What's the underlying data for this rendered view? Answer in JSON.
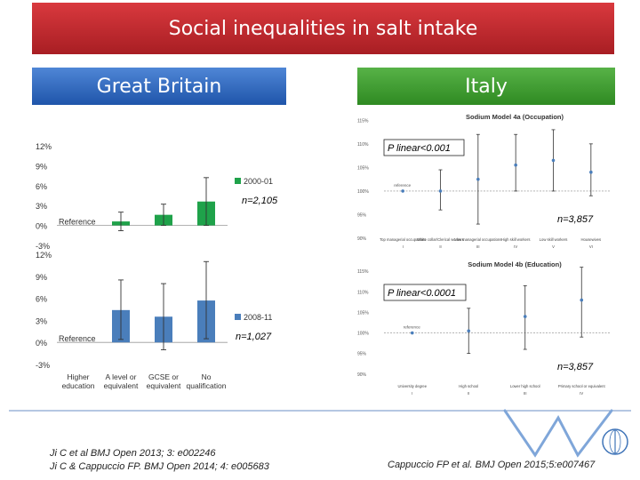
{
  "header": {
    "title": "Social inequalities in salt intake",
    "left_country": "Great Britain",
    "right_country": "Italy"
  },
  "annotations": {
    "gb_top_n": "n=2,105",
    "gb_bottom_n": "n=1,027",
    "it_top_n": "n=3,857",
    "it_bottom_n": "n=3,857",
    "it_top_p": "P linear<0.001",
    "it_bottom_p": "P linear<0.0001"
  },
  "citations": {
    "left_line1": "Ji C et al BMJ Open 2013; 3: e002246",
    "left_line2": "Ji C & Cappuccio FP. BMJ Open 2014; 4: e005683",
    "right": "Cappuccio FP et al. BMJ Open 2015;5:e007467"
  },
  "colors": {
    "title_red": "#c0282d",
    "gb_blue": "#2b63b8",
    "italy_green": "#3a9a2e",
    "bar_green": "#1fa24a",
    "bar_blue": "#4a7ebb",
    "point_blue": "#4a7ebb"
  },
  "chart_data": [
    {
      "type": "bar",
      "panel": "gb-top",
      "categories": [
        "Higher education",
        "A level or equivalent",
        "GCSE or equivalent",
        "No qualification"
      ],
      "series": [
        {
          "name": "2000-01",
          "values": [
            0,
            0.6,
            1.6,
            3.6
          ]
        }
      ],
      "error_low": [
        0,
        -0.8,
        0,
        0
      ],
      "error_high": [
        0,
        2.0,
        3.2,
        7.2
      ],
      "reference_label": "Reference",
      "ylim": [
        -3,
        12
      ],
      "yticks": [
        "12%",
        "9%",
        "6%",
        "3%",
        "0%",
        "-3%"
      ],
      "grid": false,
      "legend": "right"
    },
    {
      "type": "bar",
      "panel": "gb-bottom",
      "categories": [
        "Higher education",
        "A level or equivalent",
        "GCSE or equivalent",
        "No qualification"
      ],
      "category_labels": [
        [
          "Higher",
          "education"
        ],
        [
          "A level or",
          "equivalent"
        ],
        [
          "GCSE or",
          "equivalent"
        ],
        [
          "No",
          "qualification"
        ]
      ],
      "series": [
        {
          "name": "2008-11",
          "values": [
            0,
            4.4,
            3.5,
            5.7
          ]
        }
      ],
      "error_low": [
        0,
        0.4,
        -1.0,
        0.5
      ],
      "error_high": [
        0,
        8.5,
        8.0,
        11.0
      ],
      "reference_label": "Reference",
      "ylim": [
        -3,
        12
      ],
      "yticks": [
        "12%",
        "9%",
        "6%",
        "3%",
        "0%",
        "-3%"
      ],
      "grid": false,
      "legend": "right"
    },
    {
      "type": "scatter",
      "panel": "italy-top",
      "title": "Sodium Model 4a (Occupation)",
      "categories": [
        "Top managerial occupations",
        "White collar / Clerical workers",
        "Low managerial occupations",
        "High skill workers",
        "Low skill workers",
        "Housewives"
      ],
      "category_labels": [
        "Top managerial occupations",
        "White collar/Clerical workers",
        "Low managerial occupations",
        "High skill workers",
        "Low skill workers",
        "Housewives"
      ],
      "category_codes": [
        "I",
        "II",
        "III",
        "IV",
        "V",
        "VI"
      ],
      "values": [
        100,
        100,
        102.5,
        105.5,
        106.5,
        104
      ],
      "error_low": [
        100,
        96,
        93,
        100,
        100,
        99
      ],
      "error_high": [
        100,
        104.5,
        112,
        112,
        113,
        110
      ],
      "point_labels": [
        "reference",
        "",
        "",
        "",
        "",
        ""
      ],
      "yticks": [
        "115%",
        "110%",
        "105%",
        "100%",
        "95%",
        "90%"
      ],
      "ylim": [
        90,
        116
      ],
      "reference_line": 100
    },
    {
      "type": "scatter",
      "panel": "italy-bottom",
      "title": "Sodium Model 4b (Education)",
      "categories": [
        "University degree",
        "High school",
        "Lower high school",
        "Primary school or equivalent"
      ],
      "category_codes": [
        "I",
        "II",
        "III",
        "IV"
      ],
      "values": [
        100,
        100.5,
        104,
        108
      ],
      "error_low": [
        100,
        95,
        96,
        99
      ],
      "error_high": [
        100,
        106,
        111.5,
        116
      ],
      "point_labels": [
        "reference",
        "",
        "",
        ""
      ],
      "yticks": [
        "115%",
        "110%",
        "105%",
        "100%",
        "95%",
        "90%"
      ],
      "ylim": [
        88,
        117
      ],
      "reference_line": 100
    }
  ]
}
